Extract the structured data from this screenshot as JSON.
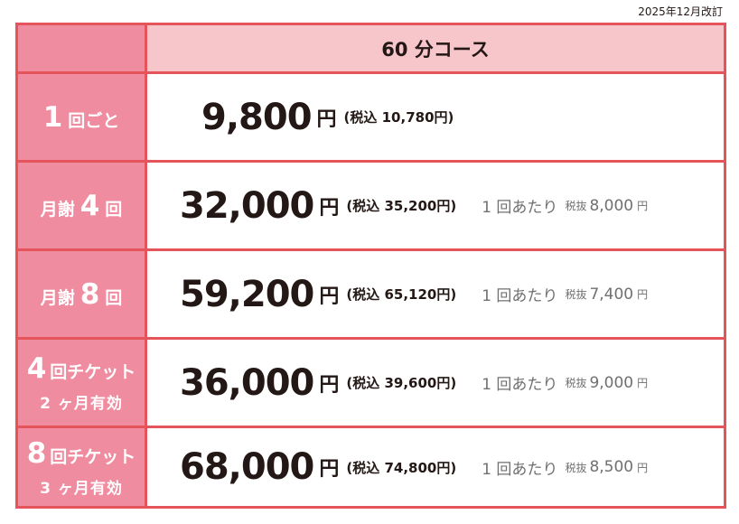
{
  "revised": "2025年12月改訂",
  "header": {
    "course": "60 分コース"
  },
  "rows": [
    {
      "num": "1",
      "label": "回ごと",
      "line2": "",
      "price": "9,800",
      "yen": "円",
      "tax": "(税込 10,780円)",
      "per": "",
      "per_tax": "",
      "per_value": "",
      "per_yen": ""
    },
    {
      "prefix": "月謝",
      "num": "4",
      "label": "回",
      "line2": "",
      "price": "32,000",
      "yen": "円",
      "tax": "(税込 35,200円)",
      "per": "1 回あたり",
      "per_tax": "税抜",
      "per_value": "8,000",
      "per_yen": "円"
    },
    {
      "prefix": "月謝",
      "num": "8",
      "label": "回",
      "line2": "",
      "price": "59,200",
      "yen": "円",
      "tax": "(税込 65,120円)",
      "per": "1 回あたり",
      "per_tax": "税抜",
      "per_value": "7,400",
      "per_yen": "円"
    },
    {
      "num": "4",
      "label": "回チケット",
      "line2": "2 ヶ月有効",
      "price": "36,000",
      "yen": "円",
      "tax": "(税込 39,600円)",
      "per": "1 回あたり",
      "per_tax": "税抜",
      "per_value": "9,000",
      "per_yen": "円"
    },
    {
      "num": "8",
      "label": "回チケット",
      "line2": "3 ヶ月有効",
      "price": "68,000",
      "yen": "円",
      "tax": "(税込 74,800円)",
      "per": "1 回あたり",
      "per_tax": "税抜",
      "per_value": "8,500",
      "per_yen": "円"
    }
  ],
  "colors": {
    "border": "#e4545a",
    "label_bg": "#ef8ca0",
    "header_bg": "#f7c6cb"
  }
}
